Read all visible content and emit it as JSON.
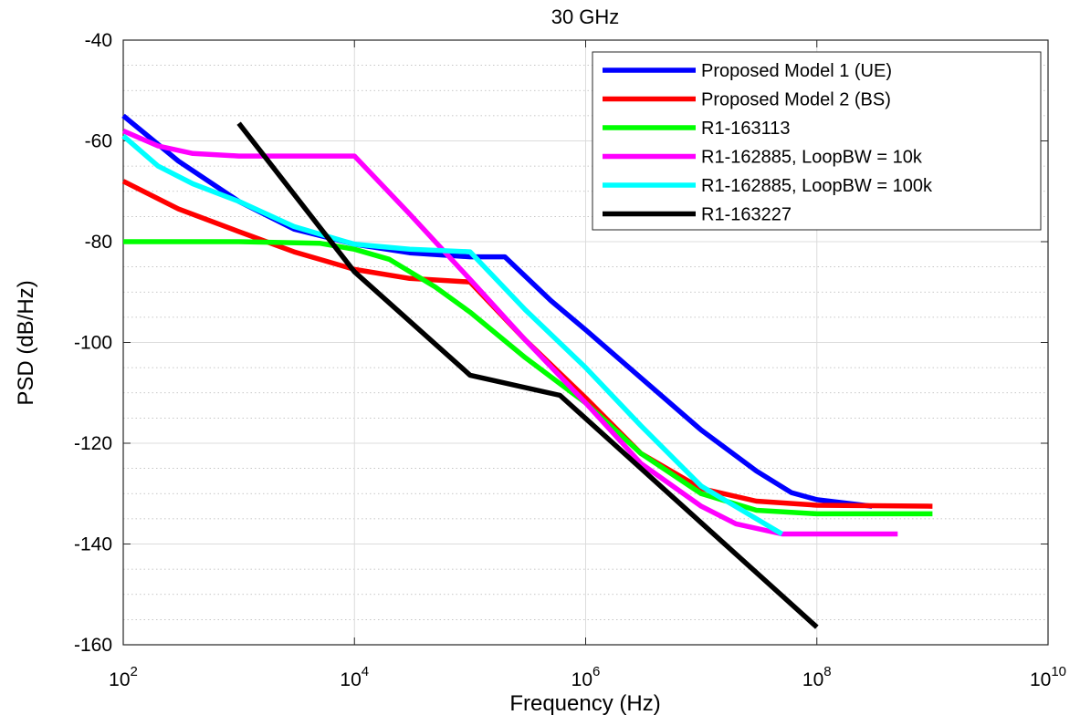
{
  "chart_data": {
    "type": "line",
    "title": "30 GHz",
    "xlabel": "Frequency (Hz)",
    "ylabel": "PSD (dB/Hz)",
    "x_scale": "log",
    "xlim": [
      100,
      10000000000
    ],
    "ylim": [
      -160,
      -40
    ],
    "grid": true,
    "minor_grid": true,
    "legend_position": "top-right",
    "x_ticks": [
      {
        "base": "10",
        "exp": "2"
      },
      {
        "base": "10",
        "exp": "4"
      },
      {
        "base": "10",
        "exp": "6"
      },
      {
        "base": "10",
        "exp": "8"
      },
      {
        "base": "10",
        "exp": "10"
      }
    ],
    "x_tick_values": [
      100,
      10000,
      1000000,
      100000000,
      10000000000
    ],
    "y_ticks": [
      -40,
      -60,
      -80,
      -100,
      -120,
      -140,
      -160
    ],
    "series": [
      {
        "name": "Proposed Model 1 (UE)",
        "color": "#0000ff",
        "x": [
          100,
          300,
          1000,
          3000,
          10000,
          30000,
          100000,
          200000,
          500000,
          1000000,
          3000000,
          10000000,
          30000000,
          60000000,
          100000000,
          300000000
        ],
        "y": [
          -55,
          -64,
          -72,
          -77.5,
          -80.5,
          -82.2,
          -83,
          -83,
          -91.7,
          -97.5,
          -107,
          -117.4,
          -125.5,
          -129.8,
          -131.2,
          -132.5
        ]
      },
      {
        "name": "Proposed Model 2 (BS)",
        "color": "#ff0000",
        "x": [
          100,
          300,
          1000,
          3000,
          10000,
          30000,
          100000,
          300000,
          1000000,
          3000000,
          10000000,
          30000000,
          100000000,
          1000000000
        ],
        "y": [
          -68,
          -73.5,
          -78,
          -82,
          -85.5,
          -87.3,
          -88,
          -99.5,
          -111,
          -122,
          -129,
          -131.5,
          -132.3,
          -132.5
        ]
      },
      {
        "name": "R1-163113",
        "color": "#00ff00",
        "x": [
          100,
          1000,
          5000,
          10000,
          20000,
          50000,
          100000,
          300000,
          1000000,
          3000000,
          10000000,
          30000000,
          100000000,
          1000000000
        ],
        "y": [
          -80,
          -80,
          -80.3,
          -81.5,
          -83.5,
          -89,
          -94,
          -103,
          -112,
          -122,
          -130,
          -133.3,
          -134,
          -134
        ]
      },
      {
        "name": "R1-162885, LoopBW = 10k",
        "color": "#ff00ff",
        "x": [
          100,
          200,
          400,
          1000,
          3000,
          10000,
          30000,
          100000,
          300000,
          1000000,
          3000000,
          10000000,
          20000000,
          50000000,
          500000000
        ],
        "y": [
          -58,
          -61,
          -62.5,
          -63,
          -63,
          -63,
          -74.5,
          -87.5,
          -99.5,
          -112,
          -124,
          -132.5,
          -136,
          -138,
          -138
        ]
      },
      {
        "name": "R1-162885, LoopBW = 100k",
        "color": "#00ffff",
        "x": [
          100,
          200,
          400,
          1000,
          3000,
          10000,
          30000,
          100000,
          300000,
          1000000,
          3000000,
          10000000,
          50000000
        ],
        "y": [
          -59,
          -65,
          -68.5,
          -72,
          -77,
          -80.5,
          -81.5,
          -82,
          -93.5,
          -105,
          -116.5,
          -128.5,
          -138
        ]
      },
      {
        "name": "R1-163227",
        "color": "#000000",
        "x": [
          1000,
          10000,
          100000,
          600000,
          100000000
        ],
        "y": [
          -56.5,
          -86,
          -106.5,
          -110.5,
          -156.5
        ]
      }
    ]
  }
}
